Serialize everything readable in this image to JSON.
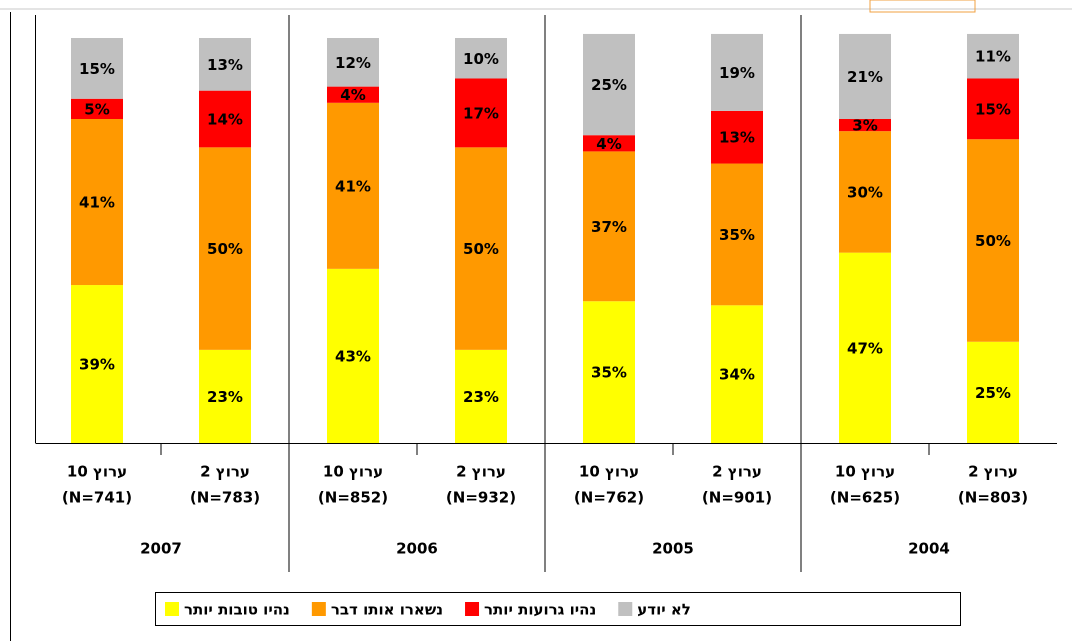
{
  "chart_data": {
    "type": "stacked_bar",
    "categories": [
      {
        "channel": "ערוץ 10",
        "n": "(N=741)"
      },
      {
        "channel": "ערוץ 2",
        "n": "(N=783)"
      },
      {
        "channel": "ערוץ 10",
        "n": "(N=852)"
      },
      {
        "channel": "ערוץ 2",
        "n": "(N=932)"
      },
      {
        "channel": "ערוץ 10",
        "n": "(N=762)"
      },
      {
        "channel": "ערוץ 2",
        "n": "(N=901)"
      },
      {
        "channel": "ערוץ 10",
        "n": "(N=625)"
      },
      {
        "channel": "ערוץ 2",
        "n": "(N=803)"
      }
    ],
    "groups": [
      "2007",
      "2006",
      "2005",
      "2004"
    ],
    "ylim": [
      0,
      100
    ],
    "series": [
      {
        "name": "נהיו טובות יותר",
        "color": "#ffff00",
        "values": [
          39,
          23,
          43,
          23,
          35,
          34,
          47,
          25
        ],
        "value_labels": [
          "39%",
          "23%",
          "43%",
          "23%",
          "35%",
          "34%",
          "47%",
          "25%"
        ]
      },
      {
        "name": "נשארו אותו דבר",
        "color": "#ff9900",
        "values": [
          41,
          50,
          41,
          50,
          37,
          35,
          30,
          50
        ],
        "value_labels": [
          "41%",
          "50%",
          "41%",
          "50%",
          "37%",
          "35%",
          "30%",
          "50%"
        ]
      },
      {
        "name": "נהיו גרועות יותר",
        "color": "#ff0000",
        "values": [
          5,
          14,
          4,
          17,
          4,
          13,
          3,
          15
        ],
        "value_labels": [
          "5%",
          "14%",
          "4%",
          "17%",
          "4%",
          "13%",
          "3%",
          "15%"
        ]
      },
      {
        "name": "לא יודע",
        "color": "#c0c0c0",
        "values": [
          15,
          13,
          12,
          10,
          25,
          19,
          21,
          11
        ],
        "value_labels": [
          "15%",
          "13%",
          "12%",
          "10%",
          "25%",
          "19%",
          "21%",
          "11%"
        ]
      }
    ]
  }
}
